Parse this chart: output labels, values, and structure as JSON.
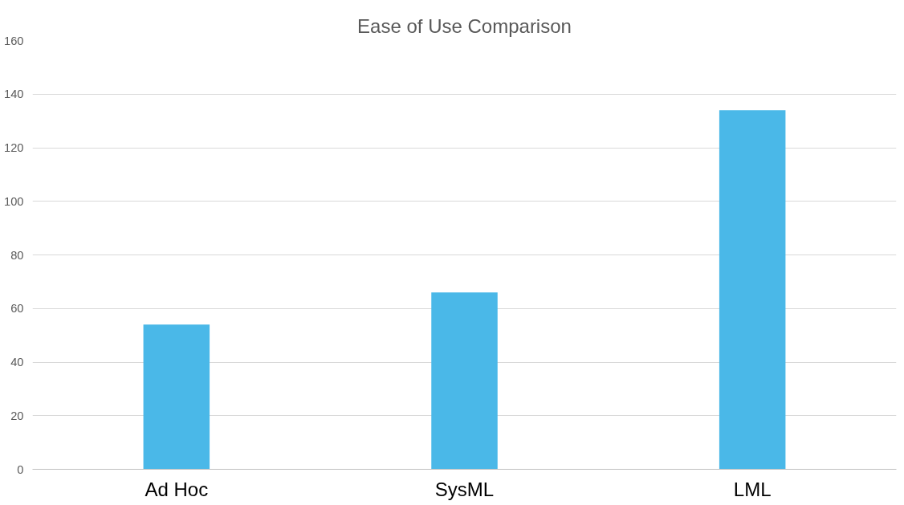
{
  "chart_data": {
    "type": "bar",
    "title": "Ease of Use Comparison",
    "categories": [
      "Ad Hoc",
      "SysML",
      "LML"
    ],
    "values": [
      54,
      66,
      134
    ],
    "color": "#4ab8e8",
    "ylim": [
      0,
      160
    ],
    "yticks": [
      0,
      20,
      40,
      60,
      80,
      100,
      120,
      140,
      160
    ],
    "grid": "y"
  }
}
